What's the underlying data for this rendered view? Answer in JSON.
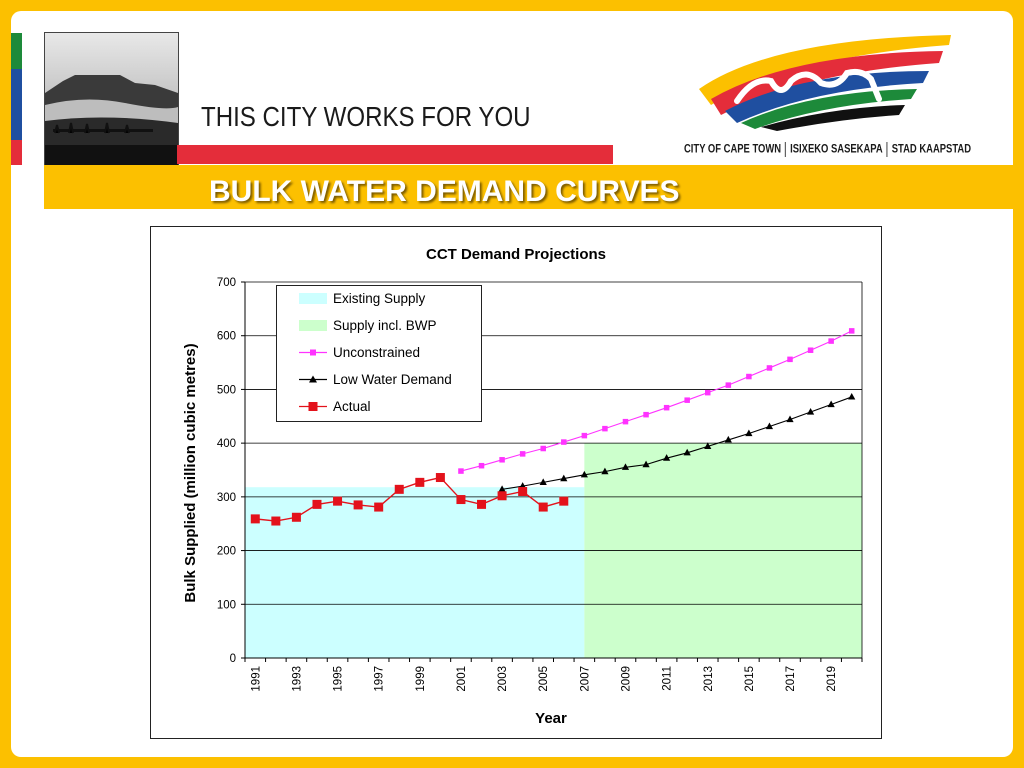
{
  "header": {
    "tagline": "THIS CITY WORKS FOR YOU",
    "city_names": [
      "CITY OF CAPE TOWN",
      "ISIXEKO SASEKAPA",
      "STAD KAAPSTAD"
    ],
    "page_title": "BULK WATER DEMAND CURVES"
  },
  "colors": {
    "frame": "#fcc000",
    "red_bar": "#e42d3a",
    "existing_supply": "#ccffff",
    "supply_bwp": "#ccffcc",
    "unconstrained": "#ff33ff",
    "low_water_demand": "#000000",
    "actual": "#e3121b"
  },
  "chart_data": {
    "type": "line",
    "title": "CCT Demand Projections",
    "xlabel": "Year",
    "ylabel": "Bulk Supplied (million cubic metres)",
    "ylim": [
      0,
      700
    ],
    "xlim": [
      1991,
      2021
    ],
    "yticks": [
      0,
      100,
      200,
      300,
      400,
      500,
      600,
      700
    ],
    "xtick_labels": [
      "1991",
      "1993",
      "1995",
      "1997",
      "1999",
      "2001",
      "2003",
      "2005",
      "2007",
      "2009",
      "2011",
      "2013",
      "2015",
      "2017",
      "2019"
    ],
    "grid": "horizontal",
    "legend_position": "top-left",
    "legend": [
      "Existing Supply",
      "Supply incl. BWP",
      "Unconstrained",
      "Low Water Demand",
      "Actual"
    ],
    "areas": [
      {
        "name": "Existing Supply",
        "x_start": 1991,
        "x_end": 2007.5,
        "value": 318
      },
      {
        "name": "Supply incl. BWP",
        "x_start": 2007.5,
        "x_end": 2021,
        "value": 400
      }
    ],
    "series": [
      {
        "name": "Unconstrained",
        "marker": "square",
        "x": [
          2001,
          2002,
          2003,
          2004,
          2005,
          2006,
          2007,
          2008,
          2009,
          2010,
          2011,
          2012,
          2013,
          2014,
          2015,
          2016,
          2017,
          2018,
          2019,
          2020
        ],
        "values": [
          348,
          358,
          369,
          380,
          390,
          402,
          414,
          427,
          440,
          453,
          466,
          480,
          494,
          508,
          524,
          540,
          556,
          573,
          590,
          609
        ]
      },
      {
        "name": "Low Water Demand",
        "marker": "triangle",
        "x": [
          2003,
          2004,
          2005,
          2006,
          2007,
          2008,
          2009,
          2010,
          2011,
          2012,
          2013,
          2014,
          2015,
          2016,
          2017,
          2018,
          2019,
          2020
        ],
        "values": [
          314,
          320,
          327,
          334,
          341,
          347,
          355,
          360,
          372,
          382,
          394,
          406,
          418,
          431,
          444,
          458,
          472,
          486
        ]
      },
      {
        "name": "Actual",
        "marker": "square",
        "x": [
          1991,
          1992,
          1993,
          1994,
          1995,
          1996,
          1997,
          1998,
          1999,
          2000,
          2001,
          2002,
          2003,
          2004,
          2005,
          2006
        ],
        "values": [
          259,
          255,
          262,
          286,
          292,
          285,
          281,
          314,
          327,
          336,
          295,
          286,
          302,
          310,
          281,
          292
        ]
      }
    ]
  }
}
